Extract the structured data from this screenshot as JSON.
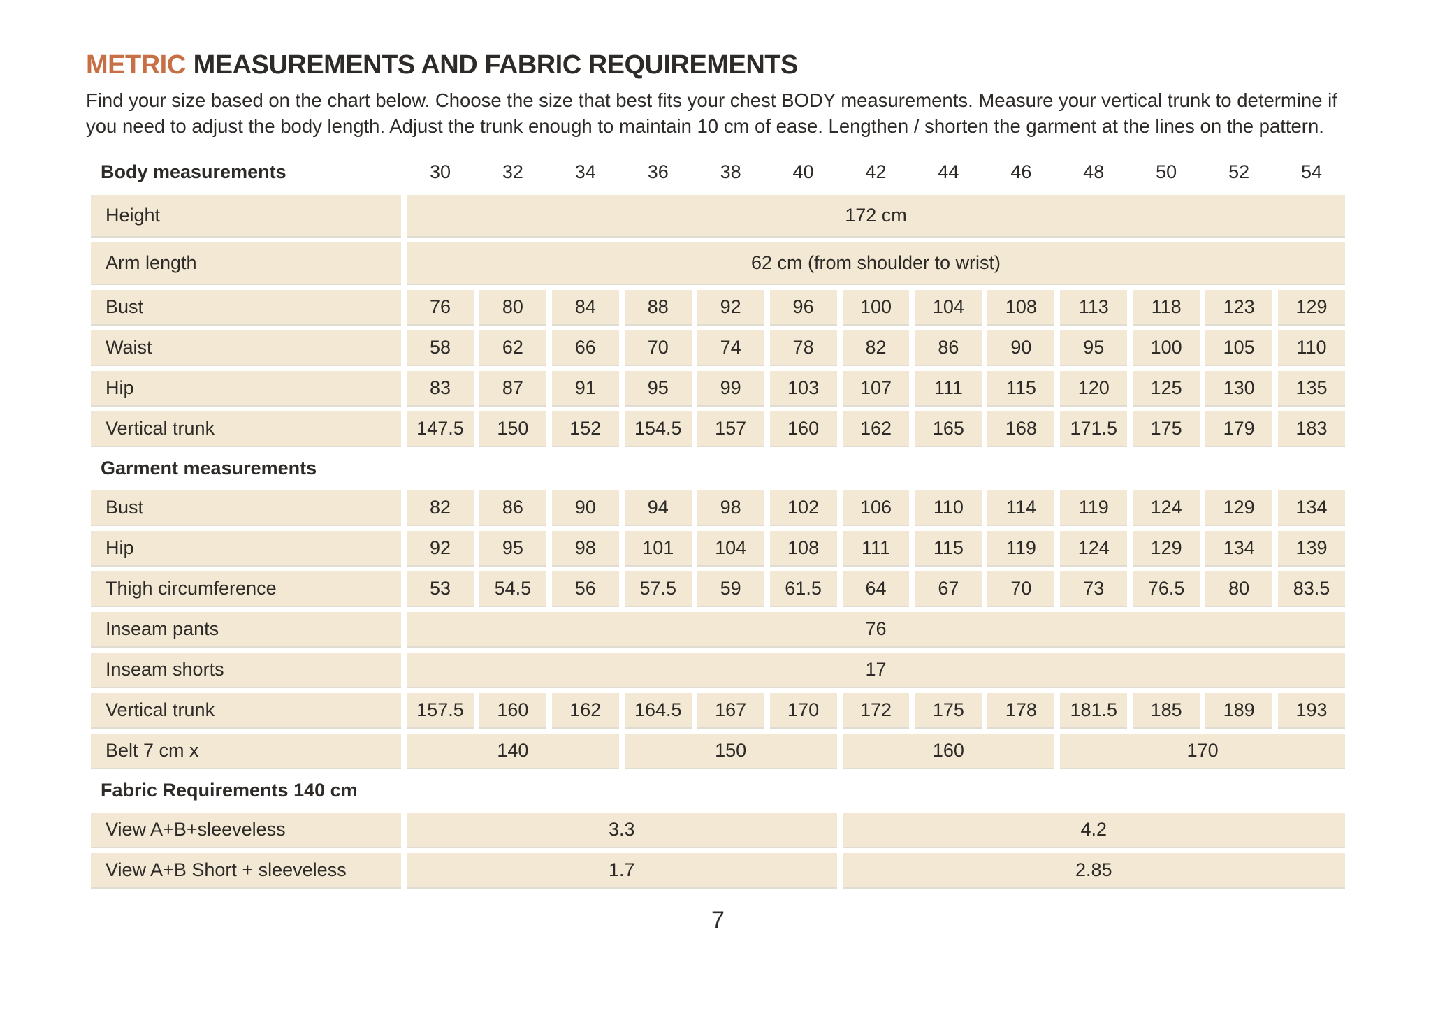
{
  "colors": {
    "accent": "#c76f45",
    "cell_bg": "#f2e8d3",
    "text_color": "#2d2a27"
  },
  "page": {
    "title_highlight": "METRIC",
    "title_rest": "MEASUREMENTS AND FABRIC REQUIREMENTS",
    "intro": "Find your size based on the chart below. Choose the size that best fits your chest BODY measurements.  Measure your vertical trunk to determine if you need to adjust the body length. Adjust the trunk enough to maintain 10 cm of ease. Lengthen / shorten the garment at the lines on the pattern.",
    "page_number": "7"
  },
  "table": {
    "header_label": "Body measurements",
    "sizes": [
      "30",
      "32",
      "34",
      "36",
      "38",
      "40",
      "42",
      "44",
      "46",
      "48",
      "50",
      "52",
      "54"
    ],
    "sections": [
      {
        "header": null,
        "rows": [
          {
            "label": "Height",
            "tall": true,
            "cells": [
              {
                "text": "172 cm",
                "span": 13
              }
            ]
          },
          {
            "label": "Arm length",
            "tall": true,
            "cells": [
              {
                "text": "62 cm (from shoulder to wrist)",
                "span": 13
              }
            ]
          },
          {
            "label": "Bust",
            "cells": [
              "76",
              "80",
              "84",
              "88",
              "92",
              "96",
              "100",
              "104",
              "108",
              "113",
              "118",
              "123",
              "129"
            ]
          },
          {
            "label": "Waist",
            "cells": [
              "58",
              "62",
              "66",
              "70",
              "74",
              "78",
              "82",
              "86",
              "90",
              "95",
              "100",
              "105",
              "110"
            ]
          },
          {
            "label": "Hip",
            "cells": [
              "83",
              "87",
              "91",
              "95",
              "99",
              "103",
              "107",
              "111",
              "115",
              "120",
              "125",
              "130",
              "135"
            ]
          },
          {
            "label": "Vertical trunk",
            "cells": [
              "147.5",
              "150",
              "152",
              "154.5",
              "157",
              "160",
              "162",
              "165",
              "168",
              "171.5",
              "175",
              "179",
              "183"
            ]
          }
        ]
      },
      {
        "header": "Garment measurements",
        "rows": [
          {
            "label": "Bust",
            "cells": [
              "82",
              "86",
              "90",
              "94",
              "98",
              "102",
              "106",
              "110",
              "114",
              "119",
              "124",
              "129",
              "134"
            ]
          },
          {
            "label": "Hip",
            "cells": [
              "92",
              "95",
              "98",
              "101",
              "104",
              "108",
              "111",
              "115",
              "119",
              "124",
              "129",
              "134",
              "139"
            ]
          },
          {
            "label": "Thigh circumference",
            "cells": [
              "53",
              "54.5",
              "56",
              "57.5",
              "59",
              "61.5",
              "64",
              "67",
              "70",
              "73",
              "76.5",
              "80",
              "83.5"
            ]
          },
          {
            "label": "Inseam pants",
            "cells": [
              {
                "text": "76",
                "span": 13
              }
            ]
          },
          {
            "label": "Inseam shorts",
            "cells": [
              {
                "text": "17",
                "span": 13
              }
            ]
          },
          {
            "label": "Vertical trunk",
            "cells": [
              "157.5",
              "160",
              "162",
              "164.5",
              "167",
              "170",
              "172",
              "175",
              "178",
              "181.5",
              "185",
              "189",
              "193"
            ]
          },
          {
            "label": "Belt 7 cm x",
            "cells": [
              {
                "text": "140",
                "span": 3
              },
              {
                "text": "150",
                "span": 3
              },
              {
                "text": "160",
                "span": 3
              },
              {
                "text": "170",
                "span": 4
              }
            ]
          }
        ]
      },
      {
        "header": "Fabric Requirements 140 cm",
        "rows": [
          {
            "label": "View A+B+sleeveless",
            "cells": [
              {
                "text": "3.3",
                "span": 6
              },
              {
                "text": "4.2",
                "span": 7
              }
            ]
          },
          {
            "label": "View A+B Short + sleeveless",
            "cells": [
              {
                "text": "1.7",
                "span": 6
              },
              {
                "text": "2.85",
                "span": 7
              }
            ]
          }
        ]
      }
    ]
  }
}
